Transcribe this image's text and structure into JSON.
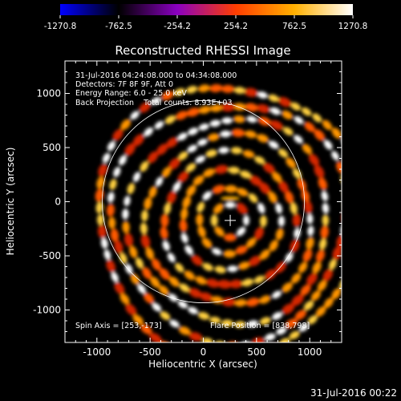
{
  "colorbar": {
    "min": -1270.8,
    "max": 1270.8,
    "tick_labels": [
      "-1270.8",
      "-762.5",
      "-254.2",
      "254.2",
      "762.5",
      "1270.8"
    ],
    "gradient": [
      "#0000ff",
      "#000000",
      "#8a00c0",
      "#ff3d00",
      "#ffb000",
      "#ffffff"
    ]
  },
  "image": {
    "title": "Reconstructed RHESSI Image",
    "info_lines": [
      "31-Jul-2016 04:24:08.000 to 04:34:08.000",
      "Detectors: 7F 8F 9F, Att 0",
      "Energy Range: 6.0 - 25.0 keV",
      "Back Projection    Total counts: 8.93E+03"
    ],
    "spin_axis": "Spin Axis = [253,-173]",
    "flare_position": "Flare Position = [838,798]",
    "footer_date": "31-Jul-2016 00:22"
  },
  "chart_data": {
    "type": "heatmap",
    "title": "Reconstructed RHESSI Image",
    "xlabel": "Heliocentric X (arcsec)",
    "ylabel": "Heliocentric Y (arcsec)",
    "xlim": [
      -1300,
      1300
    ],
    "ylim": [
      -1300,
      1300
    ],
    "x_ticks": [
      -1000,
      -500,
      0,
      500,
      1000
    ],
    "y_ticks": [
      -1000,
      -500,
      0,
      500,
      1000
    ],
    "solar_limb_radius": 950,
    "spin_axis": [
      253,
      -173
    ],
    "ring_pattern_center": [
      253,
      -173
    ],
    "ring_radii": [
      150,
      300,
      460,
      620,
      780,
      940,
      1100,
      1260
    ],
    "bright_source": [
      253,
      30
    ]
  }
}
